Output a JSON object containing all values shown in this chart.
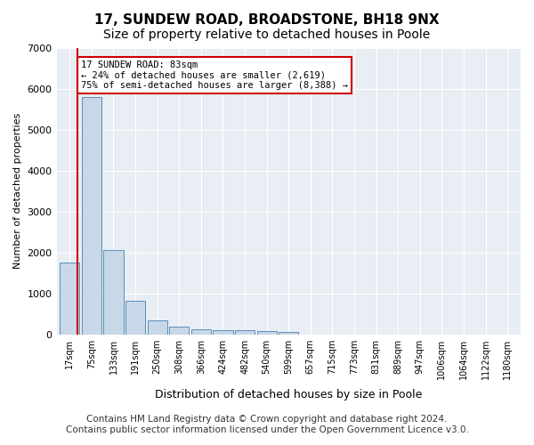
{
  "title": "17, SUNDEW ROAD, BROADSTONE, BH18 9NX",
  "subtitle": "Size of property relative to detached houses in Poole",
  "xlabel": "Distribution of detached houses by size in Poole",
  "ylabel": "Number of detached properties",
  "bin_labels": [
    "17sqm",
    "75sqm",
    "133sqm",
    "191sqm",
    "250sqm",
    "308sqm",
    "366sqm",
    "424sqm",
    "482sqm",
    "540sqm",
    "599sqm",
    "657sqm",
    "715sqm",
    "773sqm",
    "831sqm",
    "889sqm",
    "947sqm",
    "1006sqm",
    "1064sqm",
    "1122sqm",
    "1180sqm"
  ],
  "bar_values": [
    1750,
    5800,
    2050,
    820,
    340,
    185,
    115,
    100,
    90,
    75,
    60,
    0,
    0,
    0,
    0,
    0,
    0,
    0,
    0,
    0,
    0
  ],
  "bar_color": "#c8d8e8",
  "bar_edgecolor": "#5b8db8",
  "vline_x": 0.37,
  "annotation_text": "17 SUNDEW ROAD: 83sqm\n← 24% of detached houses are smaller (2,619)\n75% of semi-detached houses are larger (8,388) →",
  "vline_color": "#cc0000",
  "annotation_box_edgecolor": "#cc0000",
  "ylim": [
    0,
    7000
  ],
  "yticks": [
    0,
    1000,
    2000,
    3000,
    4000,
    5000,
    6000,
    7000
  ],
  "footer_line1": "Contains HM Land Registry data © Crown copyright and database right 2024.",
  "footer_line2": "Contains public sector information licensed under the Open Government Licence v3.0.",
  "background_color": "#ffffff",
  "plot_background_color": "#e8eef4",
  "grid_color": "#ffffff",
  "title_fontsize": 11,
  "subtitle_fontsize": 10,
  "footer_fontsize": 7.5
}
